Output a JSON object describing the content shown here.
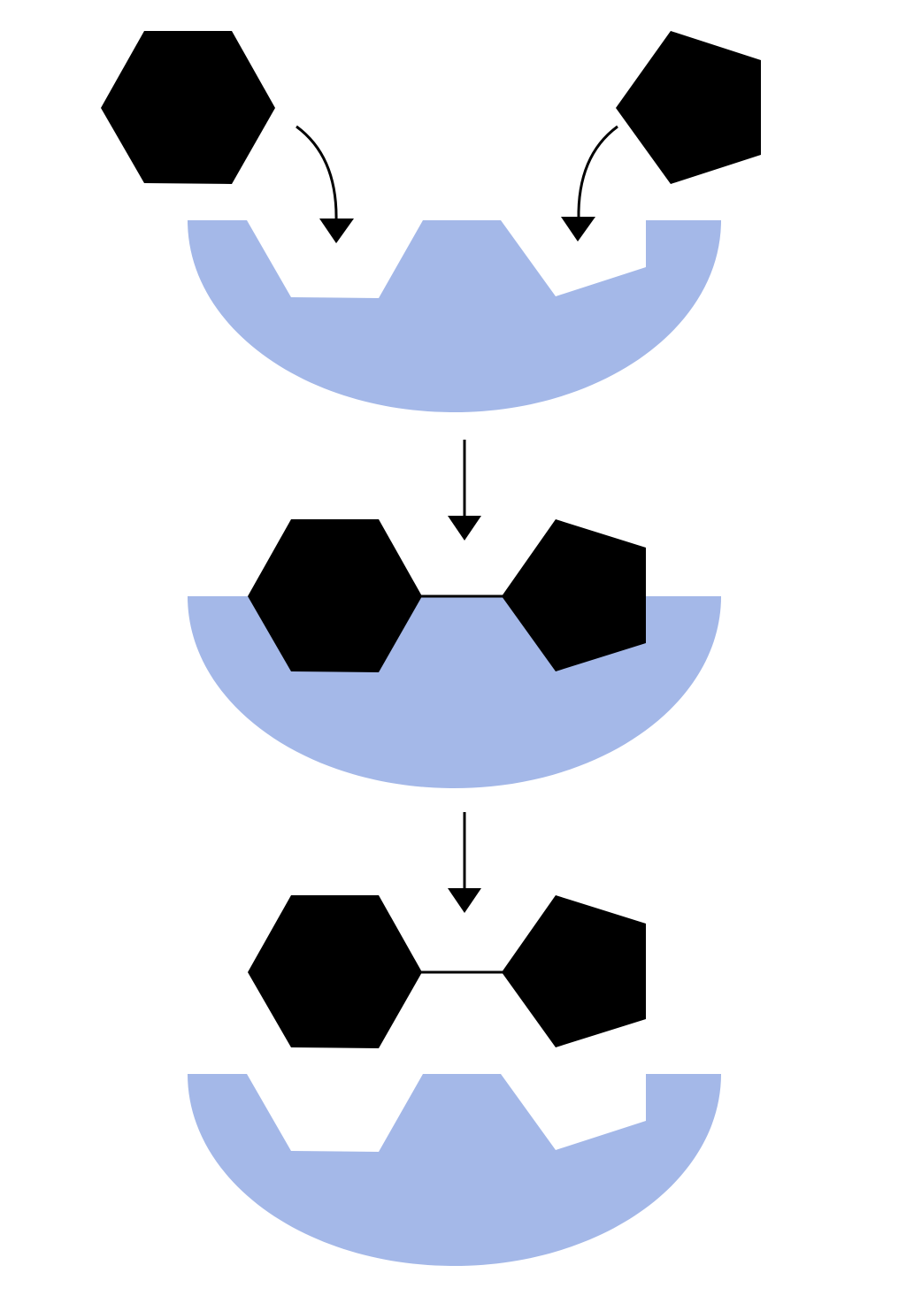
{
  "diagram": {
    "kind": "enzyme-substrate binding schematic",
    "stages": [
      {
        "id": "substrates-approach",
        "substrates": [
          "hexagon",
          "pentagon"
        ],
        "bound": false,
        "joined": false
      },
      {
        "id": "enzyme-substrate-complex",
        "substrates": [
          "hexagon",
          "pentagon"
        ],
        "bound": true,
        "joined": true
      },
      {
        "id": "product-released",
        "substrates": [
          "hexagon",
          "pentagon"
        ],
        "bound": false,
        "joined": true
      }
    ]
  },
  "colors": {
    "enzyme": "#a4b8e8",
    "substrate": "#000000",
    "arrow": "#000000",
    "background": "#ffffff"
  },
  "icons": {
    "substrate_a": "hexagon-shape",
    "substrate_b": "pentagon-shape",
    "enzyme": "bowl-shaped-enzyme"
  }
}
